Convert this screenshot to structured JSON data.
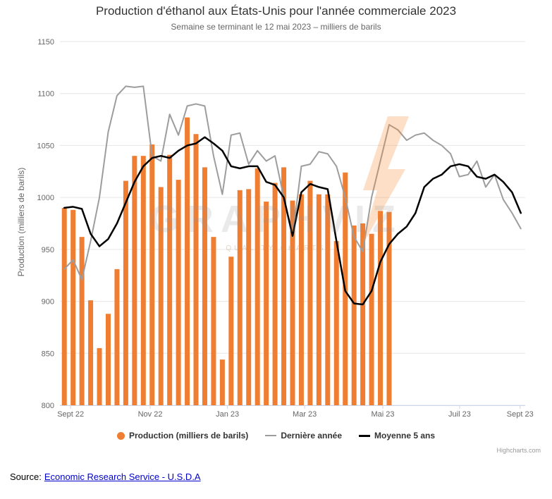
{
  "chart_data": {
    "type": "bar+line",
    "title": "Production d'éthanol aux États-Unis pour l'année commerciale 2023",
    "subtitle": "Semaine se terminant le 12 mai 2023 – milliers de barils",
    "ylabel": "Production (milliers de barils)",
    "ylim": [
      800,
      1150
    ],
    "y_ticks": [
      800,
      850,
      900,
      950,
      1000,
      1050,
      1100,
      1150
    ],
    "grid": "horizontal",
    "legend_position": "bottom",
    "n_weeks": 53,
    "x_ticks": [
      {
        "label": "Sept 22",
        "pos": 0.023
      },
      {
        "label": "Nov 22",
        "pos": 0.194
      },
      {
        "label": "Jan 23",
        "pos": 0.36
      },
      {
        "label": "Mar 23",
        "pos": 0.526
      },
      {
        "label": "Mai 23",
        "pos": 0.694
      },
      {
        "label": "Juil 23",
        "pos": 0.859
      },
      {
        "label": "Sept 23",
        "pos": 0.989
      }
    ],
    "series": [
      {
        "name": "Production (milliers de barils)",
        "type": "bar",
        "color": "#ef7e32",
        "values": [
          990,
          988,
          962,
          901,
          855,
          888,
          931,
          1016,
          1040,
          1040,
          1051,
          1010,
          1041,
          1017,
          1077,
          1061,
          1029,
          962,
          844,
          943,
          1007,
          1008,
          1028,
          996,
          1014,
          1029,
          997,
          1003,
          1016,
          1003,
          1003,
          958,
          1024,
          973,
          975,
          965,
          987,
          986
        ]
      },
      {
        "name": "Dernière année",
        "type": "line",
        "color": "#9d9d9d",
        "width": 2,
        "values": [
          931,
          940,
          921,
          958,
          1000,
          1063,
          1098,
          1107,
          1106,
          1107,
          1040,
          1035,
          1080,
          1060,
          1088,
          1090,
          1088,
          1040,
          1003,
          1060,
          1062,
          1032,
          1045,
          1035,
          1040,
          1000,
          962,
          1030,
          1032,
          1044,
          1042,
          1030,
          1000,
          962,
          948,
          1000,
          1035,
          1070,
          1065,
          1055,
          1060,
          1062,
          1055,
          1050,
          1042,
          1020,
          1022,
          1035,
          1010,
          1022,
          998,
          985,
          970
        ]
      },
      {
        "name": "Moyenne 5 ans",
        "type": "line",
        "color": "#000000",
        "width": 2.5,
        "values": [
          990,
          991,
          989,
          965,
          953,
          960,
          975,
          995,
          1015,
          1030,
          1038,
          1040,
          1038,
          1045,
          1050,
          1052,
          1058,
          1052,
          1045,
          1030,
          1028,
          1030,
          1030,
          1015,
          1012,
          1000,
          963,
          1005,
          1013,
          1010,
          1008,
          958,
          910,
          898,
          897,
          910,
          938,
          955,
          965,
          972,
          985,
          1010,
          1018,
          1022,
          1030,
          1032,
          1030,
          1020,
          1018,
          1022,
          1015,
          1005,
          985
        ]
      }
    ]
  },
  "watermark": {
    "text": "GRAPHVIZ",
    "subtext": "QUALITY CHARTS"
  },
  "credits": "Highcharts.com",
  "source": {
    "prefix": "Source:",
    "link_text": "Economic Research Service - U.S.D.A"
  }
}
